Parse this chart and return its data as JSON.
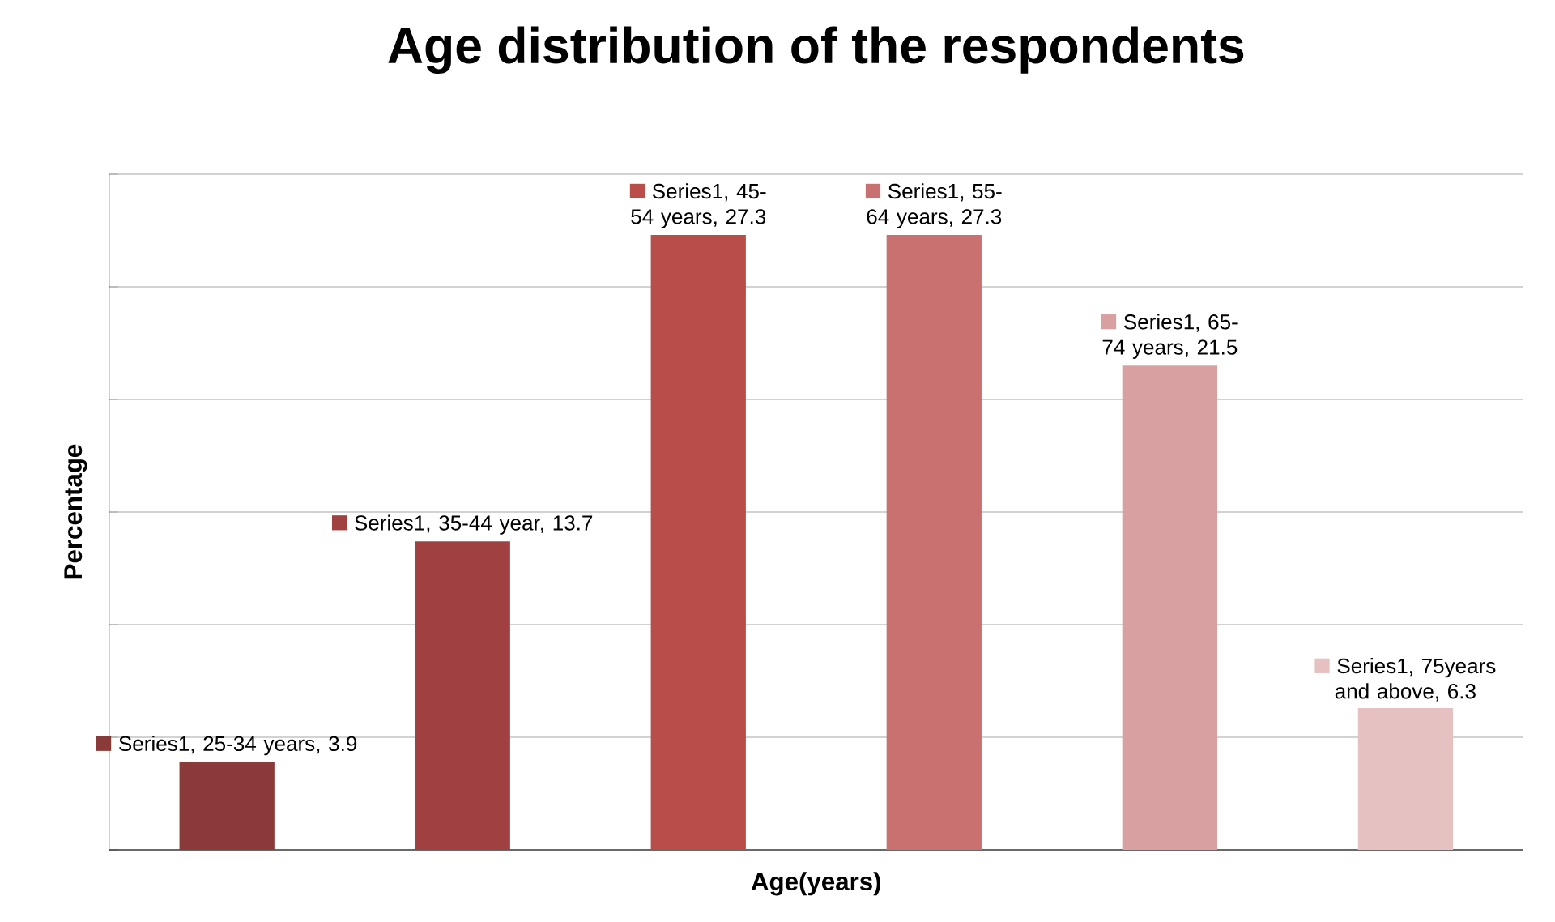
{
  "chart_data": {
    "type": "bar",
    "title": "Age distribution of the respondents",
    "xlabel": "Age(years)",
    "ylabel": "Percentage",
    "categories": [
      null,
      null,
      null,
      null,
      null,
      null
    ],
    "values": [
      3.9,
      13.7,
      27.3,
      27.3,
      21.5,
      6.3
    ],
    "colors": [
      "#8b3a3a",
      "#a04040",
      "#b94d4a",
      "#c87170",
      "#d8a0a0",
      "#e5c1c2"
    ],
    "value_labels": [
      "Series1, 25-34 years, 3.9",
      "Series1, 35-44 year, 13.7",
      "Series1, 45-54 years, 27.3",
      "Series1, 55-64 years, 27.3",
      "Series1, 65-74 years, 21.5",
      "Series1, 75years and above, 6.3"
    ],
    "ylim": [
      0,
      30
    ],
    "yticks": [
      {
        "value": 0,
        "label": null
      },
      {
        "value": 5,
        "label": null
      },
      {
        "value": 10,
        "label": null
      },
      {
        "value": 15,
        "label": null
      },
      {
        "value": 20,
        "label": null
      },
      {
        "value": 25,
        "label": null
      },
      {
        "value": 30,
        "label": null
      }
    ],
    "grid": "y"
  }
}
